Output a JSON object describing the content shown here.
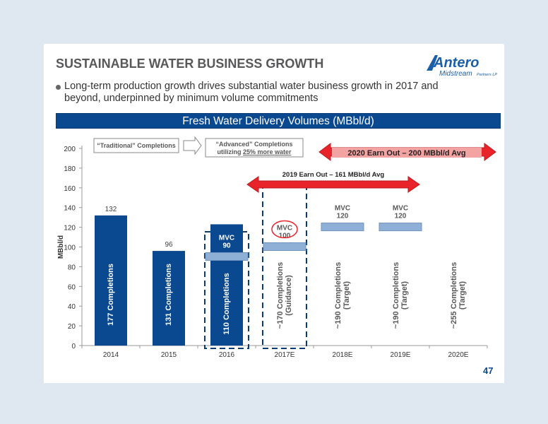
{
  "slide": {
    "title": "SUSTAINABLE WATER BUSINESS GROWTH",
    "bullet": "Long-term production growth drives substantial water business growth in 2017 and beyond, underpinned by minimum volume commitments",
    "banner": "Fresh Water Delivery Volumes (MBbl/d)",
    "page_number": "47",
    "logo": {
      "name": "Antero",
      "subtitle": "Midstream",
      "tag": "Partners LP",
      "accent": "#1a5fa8"
    }
  },
  "colors": {
    "bar": "#0a4990",
    "mvc_bar": "#8fb0d6",
    "arrow": "#e8242a",
    "arrow_light": "#f4a3a3",
    "banner": "#0a4990",
    "text_dark": "#58585a"
  },
  "chart_data": {
    "type": "bar",
    "title": "Fresh Water Delivery Volumes (MBbl/d)",
    "ylabel": "MBbl/d",
    "xlabel": "",
    "ylim": [
      0,
      200
    ],
    "yticks": [
      0,
      20,
      40,
      60,
      80,
      100,
      120,
      140,
      160,
      180,
      200
    ],
    "grid": false,
    "categories": [
      "2014",
      "2015",
      "2016",
      "2017E",
      "2018E",
      "2019E",
      "2020E"
    ],
    "values": [
      132,
      96,
      123,
      null,
      null,
      null,
      null
    ],
    "value_labels": [
      "132",
      "96",
      "",
      "",
      "",
      "",
      ""
    ],
    "bar_texts": [
      "177 Completions",
      "131 Completions",
      "110 Completions",
      "~170 Completions (Guidance)",
      "~190 Completions (Target)",
      "~190 Completions (Target)",
      "~255 Completions (Target)"
    ],
    "mvc": [
      {
        "category": "2016",
        "value": 90,
        "label": "MVC\n90"
      },
      {
        "category": "2017E",
        "value": 100,
        "label": "MVC\n100"
      },
      {
        "category": "2018E",
        "value": 120,
        "label": "MVC\n120"
      },
      {
        "category": "2019E",
        "value": 120,
        "label": "MVC\n120"
      }
    ],
    "annotations": {
      "traditional": "“Traditional” Completions",
      "advanced_line1": "“Advanced” Completions",
      "advanced_line2_pre": "utilizing ",
      "advanced_line2_underline": "25% more water",
      "earnout_2019": "2019 Earn Out – 161 MBbl/d Avg",
      "earnout_2020": "2020 Earn Out – 200 MBbl/d Avg"
    }
  }
}
